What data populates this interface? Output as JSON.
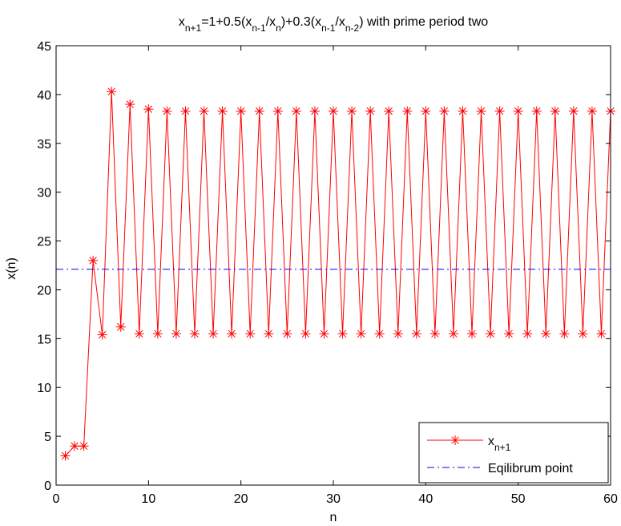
{
  "chart_data": {
    "type": "line",
    "title": {
      "segments": [
        {
          "text": "x",
          "sub": false
        },
        {
          "text": "n+1",
          "sub": true
        },
        {
          "text": "=1+0.5(x",
          "sub": false
        },
        {
          "text": "n-1",
          "sub": true
        },
        {
          "text": "/x",
          "sub": false
        },
        {
          "text": "n",
          "sub": true
        },
        {
          "text": ")+0.3(x",
          "sub": false
        },
        {
          "text": "n-1",
          "sub": true
        },
        {
          "text": "/x",
          "sub": false
        },
        {
          "text": "n-2",
          "sub": true
        },
        {
          "text": ") with prime period two",
          "sub": false
        }
      ]
    },
    "xlabel": "n",
    "ylabel": "x(n)",
    "xlim": [
      0,
      60
    ],
    "ylim": [
      0,
      45
    ],
    "xticks": [
      0,
      10,
      20,
      30,
      40,
      50,
      60
    ],
    "yticks": [
      0,
      5,
      10,
      15,
      20,
      25,
      30,
      35,
      40,
      45
    ],
    "grid": false,
    "legend_position": "bottom-right",
    "series": [
      {
        "name_parts": [
          {
            "text": "x",
            "sub": false
          },
          {
            "text": "n+1",
            "sub": true
          }
        ],
        "color": "#ff0000",
        "line_style": "solid",
        "marker": "asterisk",
        "x": [
          1,
          2,
          3,
          4,
          5,
          6,
          7,
          8,
          9,
          10,
          11,
          12,
          13,
          14,
          15,
          16,
          17,
          18,
          19,
          20,
          21,
          22,
          23,
          24,
          25,
          26,
          27,
          28,
          29,
          30,
          31,
          32,
          33,
          34,
          35,
          36,
          37,
          38,
          39,
          40,
          41,
          42,
          43,
          44,
          45,
          46,
          47,
          48,
          49,
          50,
          51,
          52,
          53,
          54,
          55,
          56,
          57,
          58,
          59,
          60
        ],
        "y": [
          3,
          4,
          4,
          23,
          15.4,
          40.3,
          16.2,
          39,
          15.5,
          38.5,
          15.5,
          38.3,
          15.5,
          38.3,
          15.5,
          38.3,
          15.5,
          38.3,
          15.5,
          38.3,
          15.5,
          38.3,
          15.5,
          38.3,
          15.5,
          38.3,
          15.5,
          38.3,
          15.5,
          38.3,
          15.5,
          38.3,
          15.5,
          38.3,
          15.5,
          38.3,
          15.5,
          38.3,
          15.5,
          38.3,
          15.5,
          38.3,
          15.5,
          38.3,
          15.5,
          38.3,
          15.5,
          38.3,
          15.5,
          38.3,
          15.5,
          38.3,
          15.5,
          38.3,
          15.5,
          38.3,
          15.5,
          38.3,
          15.5,
          38.3
        ]
      },
      {
        "name": "Eqilibrum point",
        "color": "#0000ff",
        "line_style": "dashdot",
        "marker": "none",
        "x": [
          0,
          60
        ],
        "y": [
          22.1,
          22.1
        ]
      }
    ]
  }
}
